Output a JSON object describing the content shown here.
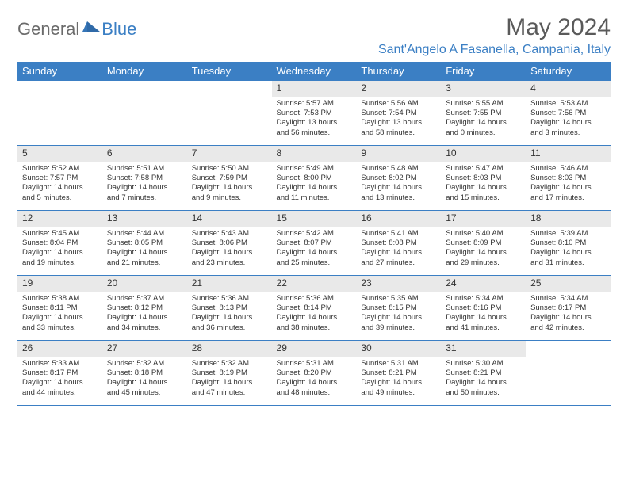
{
  "brand": {
    "general": "General",
    "blue": "Blue"
  },
  "title": "May 2024",
  "location": "Sant'Angelo A Fasanella, Campania, Italy",
  "weekdayHeaders": [
    "Sunday",
    "Monday",
    "Tuesday",
    "Wednesday",
    "Thursday",
    "Friday",
    "Saturday"
  ],
  "colors": {
    "accent": "#3b7fc4",
    "headerText": "#ffffff",
    "dayBg": "#e9e9e9",
    "bodyText": "#333333",
    "titleText": "#5a5a5a"
  },
  "layout": {
    "columns": 7,
    "rows": 5,
    "startOffset": 3,
    "daysInMonth": 31
  },
  "days": [
    {
      "n": 1,
      "sunrise": "5:57 AM",
      "sunset": "7:53 PM",
      "daylight": "13 hours and 56 minutes."
    },
    {
      "n": 2,
      "sunrise": "5:56 AM",
      "sunset": "7:54 PM",
      "daylight": "13 hours and 58 minutes."
    },
    {
      "n": 3,
      "sunrise": "5:55 AM",
      "sunset": "7:55 PM",
      "daylight": "14 hours and 0 minutes."
    },
    {
      "n": 4,
      "sunrise": "5:53 AM",
      "sunset": "7:56 PM",
      "daylight": "14 hours and 3 minutes."
    },
    {
      "n": 5,
      "sunrise": "5:52 AM",
      "sunset": "7:57 PM",
      "daylight": "14 hours and 5 minutes."
    },
    {
      "n": 6,
      "sunrise": "5:51 AM",
      "sunset": "7:58 PM",
      "daylight": "14 hours and 7 minutes."
    },
    {
      "n": 7,
      "sunrise": "5:50 AM",
      "sunset": "7:59 PM",
      "daylight": "14 hours and 9 minutes."
    },
    {
      "n": 8,
      "sunrise": "5:49 AM",
      "sunset": "8:00 PM",
      "daylight": "14 hours and 11 minutes."
    },
    {
      "n": 9,
      "sunrise": "5:48 AM",
      "sunset": "8:02 PM",
      "daylight": "14 hours and 13 minutes."
    },
    {
      "n": 10,
      "sunrise": "5:47 AM",
      "sunset": "8:03 PM",
      "daylight": "14 hours and 15 minutes."
    },
    {
      "n": 11,
      "sunrise": "5:46 AM",
      "sunset": "8:03 PM",
      "daylight": "14 hours and 17 minutes."
    },
    {
      "n": 12,
      "sunrise": "5:45 AM",
      "sunset": "8:04 PM",
      "daylight": "14 hours and 19 minutes."
    },
    {
      "n": 13,
      "sunrise": "5:44 AM",
      "sunset": "8:05 PM",
      "daylight": "14 hours and 21 minutes."
    },
    {
      "n": 14,
      "sunrise": "5:43 AM",
      "sunset": "8:06 PM",
      "daylight": "14 hours and 23 minutes."
    },
    {
      "n": 15,
      "sunrise": "5:42 AM",
      "sunset": "8:07 PM",
      "daylight": "14 hours and 25 minutes."
    },
    {
      "n": 16,
      "sunrise": "5:41 AM",
      "sunset": "8:08 PM",
      "daylight": "14 hours and 27 minutes."
    },
    {
      "n": 17,
      "sunrise": "5:40 AM",
      "sunset": "8:09 PM",
      "daylight": "14 hours and 29 minutes."
    },
    {
      "n": 18,
      "sunrise": "5:39 AM",
      "sunset": "8:10 PM",
      "daylight": "14 hours and 31 minutes."
    },
    {
      "n": 19,
      "sunrise": "5:38 AM",
      "sunset": "8:11 PM",
      "daylight": "14 hours and 33 minutes."
    },
    {
      "n": 20,
      "sunrise": "5:37 AM",
      "sunset": "8:12 PM",
      "daylight": "14 hours and 34 minutes."
    },
    {
      "n": 21,
      "sunrise": "5:36 AM",
      "sunset": "8:13 PM",
      "daylight": "14 hours and 36 minutes."
    },
    {
      "n": 22,
      "sunrise": "5:36 AM",
      "sunset": "8:14 PM",
      "daylight": "14 hours and 38 minutes."
    },
    {
      "n": 23,
      "sunrise": "5:35 AM",
      "sunset": "8:15 PM",
      "daylight": "14 hours and 39 minutes."
    },
    {
      "n": 24,
      "sunrise": "5:34 AM",
      "sunset": "8:16 PM",
      "daylight": "14 hours and 41 minutes."
    },
    {
      "n": 25,
      "sunrise": "5:34 AM",
      "sunset": "8:17 PM",
      "daylight": "14 hours and 42 minutes."
    },
    {
      "n": 26,
      "sunrise": "5:33 AM",
      "sunset": "8:17 PM",
      "daylight": "14 hours and 44 minutes."
    },
    {
      "n": 27,
      "sunrise": "5:32 AM",
      "sunset": "8:18 PM",
      "daylight": "14 hours and 45 minutes."
    },
    {
      "n": 28,
      "sunrise": "5:32 AM",
      "sunset": "8:19 PM",
      "daylight": "14 hours and 47 minutes."
    },
    {
      "n": 29,
      "sunrise": "5:31 AM",
      "sunset": "8:20 PM",
      "daylight": "14 hours and 48 minutes."
    },
    {
      "n": 30,
      "sunrise": "5:31 AM",
      "sunset": "8:21 PM",
      "daylight": "14 hours and 49 minutes."
    },
    {
      "n": 31,
      "sunrise": "5:30 AM",
      "sunset": "8:21 PM",
      "daylight": "14 hours and 50 minutes."
    }
  ],
  "labels": {
    "sunrise": "Sunrise:",
    "sunset": "Sunset:",
    "daylight": "Daylight:"
  }
}
